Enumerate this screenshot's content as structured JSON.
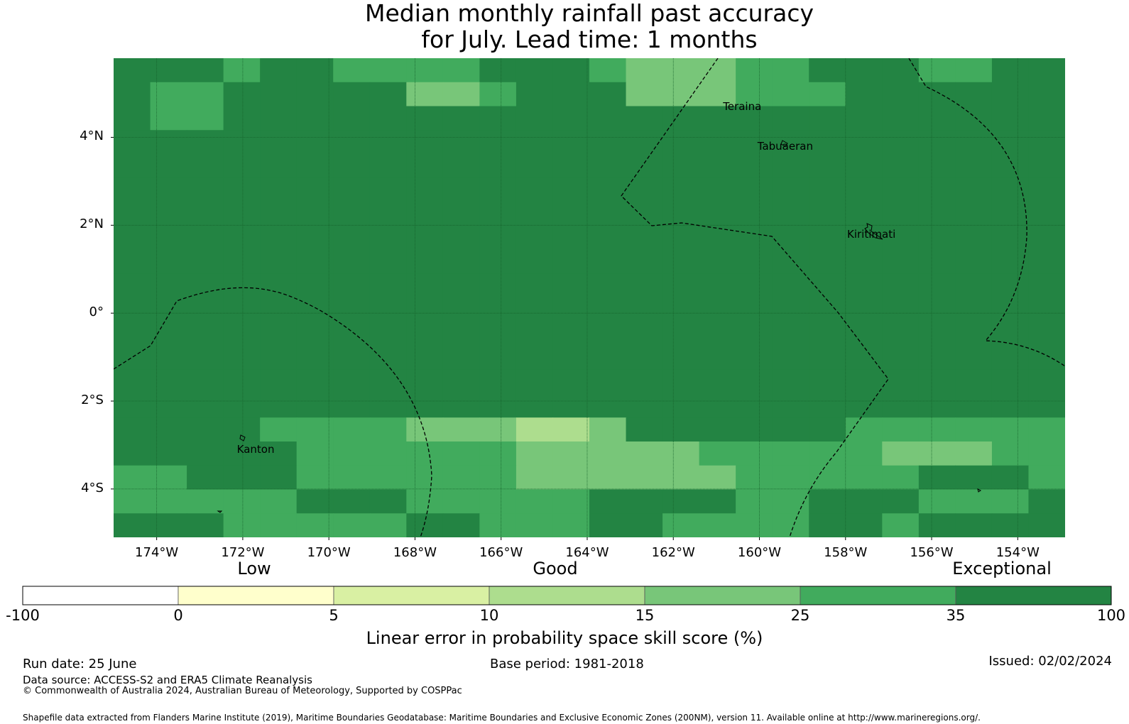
{
  "title": {
    "line1": "Median monthly rainfall past accuracy",
    "line2": "for July. Lead time: 1 months"
  },
  "map": {
    "lon_range": [
      -175.0,
      -152.9
    ],
    "lat_range": [
      -5.1,
      5.8
    ],
    "lon_ticks": [
      {
        "value": -174,
        "label": "174°W"
      },
      {
        "value": -172,
        "label": "172°W"
      },
      {
        "value": -170,
        "label": "170°W"
      },
      {
        "value": -168,
        "label": "168°W"
      },
      {
        "value": -166,
        "label": "166°W"
      },
      {
        "value": -164,
        "label": "164°W"
      },
      {
        "value": -162,
        "label": "162°W"
      },
      {
        "value": -160,
        "label": "160°W"
      },
      {
        "value": -158,
        "label": "158°W"
      },
      {
        "value": -156,
        "label": "156°W"
      },
      {
        "value": -154,
        "label": "154°W"
      }
    ],
    "lat_ticks": [
      {
        "value": 4,
        "label": "4°N"
      },
      {
        "value": 2,
        "label": "2°N"
      },
      {
        "value": 0,
        "label": "0°"
      },
      {
        "value": -2,
        "label": "2°S"
      },
      {
        "value": -4,
        "label": "4°S"
      }
    ],
    "places": [
      {
        "name": "Teraina",
        "lon": -160.4,
        "lat": 4.7
      },
      {
        "name": "Tabuaeran",
        "lon": -159.4,
        "lat": 3.8
      },
      {
        "name": "Kiritimati",
        "lon": -157.4,
        "lat": 1.8
      },
      {
        "name": "Kanton",
        "lon": -171.7,
        "lat": -3.1
      }
    ],
    "grid": {
      "cols": 26,
      "rows": 20,
      "cells": [
        "66656655556665444556665566",
        "65566666445666444555666666",
        "65566666666666666666666666",
        "66666666666666666666666666",
        "66666666666666666666666666",
        "66666666666666666666666666",
        "66666666666666666666666666",
        "66666666666666666666666666",
        "66666666666666666666666666",
        "66666666666666666666666666",
        "66666666666666666666666666",
        "66666666666666666666666666",
        "66666666666666666666666666",
        "66666666666666666666666666",
        "66666666666666666666666666",
        "66665555444334666666555555",
        "66666555555444445555544455",
        "55666555555444444555556665",
        "55555666555556666556665556",
        "66655555665556655556656666"
      ]
    }
  },
  "colorbar": {
    "categories": [
      "Low",
      "Good",
      "Exceptional"
    ],
    "bins": [
      {
        "from": -100,
        "to": 0,
        "color": "#ffffff"
      },
      {
        "from": 0,
        "to": 5,
        "color": "#ffffcc"
      },
      {
        "from": 5,
        "to": 10,
        "color": "#d9f0a3"
      },
      {
        "from": 10,
        "to": 15,
        "color": "#addd8e"
      },
      {
        "from": 15,
        "to": 25,
        "color": "#78c679"
      },
      {
        "from": 25,
        "to": 35,
        "color": "#41ab5d"
      },
      {
        "from": 35,
        "to": 100,
        "color": "#238443"
      }
    ],
    "tick_labels": [
      "-100",
      "0",
      "5",
      "10",
      "15",
      "25",
      "35",
      "100"
    ],
    "label": "Linear error in probability space skill score (%)"
  },
  "footer": {
    "run_date": "Run date: 25 June",
    "base_period": "Base period: 1981-2018",
    "issued": "Issued: 02/02/2024",
    "data_source": "Data source: ACCESS-S2 and ERA5 Climate Reanalysis",
    "copyright": "© Commonwealth of Australia 2024, Australian Bureau of Meteorology, Supported by COSPPac",
    "shapefile": "Shapefile data extracted from Flanders Marine Institute (2019), Maritime Boundaries Geodatabase: Maritime Boundaries and Exclusive Economic Zones (200NM), version 11. Available online at http://www.marineregions.org/."
  }
}
